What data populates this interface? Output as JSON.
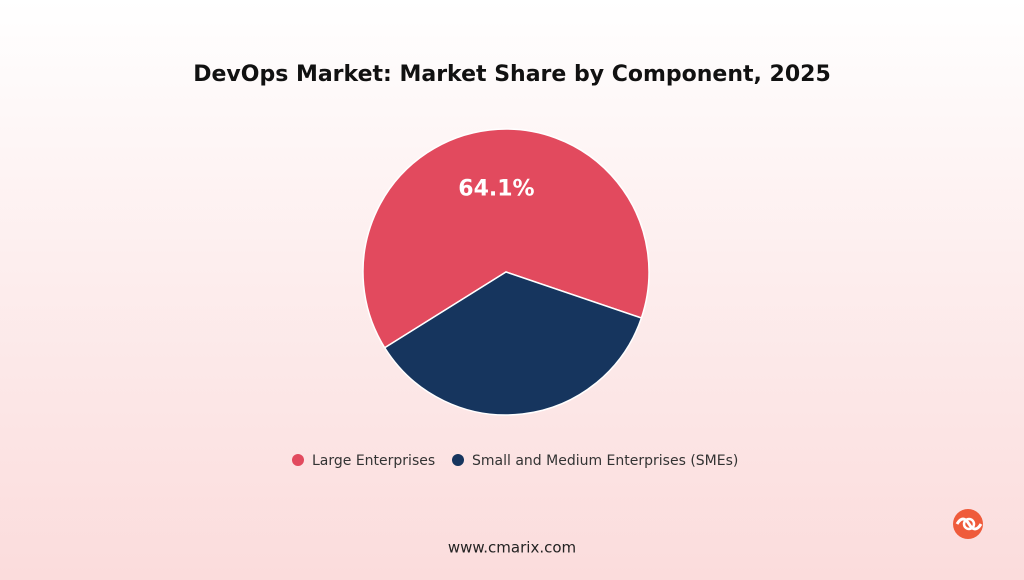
{
  "chart_data": {
    "type": "pie",
    "title": "DevOps Market: Market Share by Component, 2025",
    "categories": [
      "Large Enterprises",
      "Small and Medium Enterprises (SMEs)"
    ],
    "values": [
      64.1,
      35.9
    ],
    "value_labels": [
      "64.1%",
      null
    ],
    "colors": [
      "#e24a5e",
      "#16355e"
    ]
  },
  "footer": "www.cmarix.com"
}
